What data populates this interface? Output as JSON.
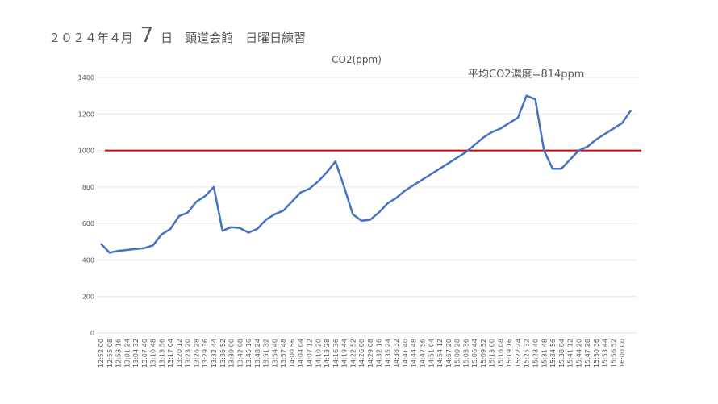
{
  "chart_data": {
    "type": "line",
    "title": [
      "２０２４年４月",
      "7",
      "日　顕道会館　日曜日練習"
    ],
    "annotation": "平均CO2濃度=814ppm",
    "categories": [
      "12:52:00",
      "12:55:08",
      "12:58:16",
      "13:01:24",
      "13:04:32",
      "13:07:40",
      "13:10:48",
      "13:13:56",
      "13:17:04",
      "13:20:12",
      "13:23:20",
      "13:26:28",
      "13:29:36",
      "13:32:44",
      "13:35:52",
      "13:39:00",
      "13:42:08",
      "13:45:16",
      "13:48:24",
      "13:51:32",
      "13:54:40",
      "13:57:48",
      "14:00:56",
      "14:04:04",
      "14:07:12",
      "14:10:20",
      "14:13:28",
      "14:16:36",
      "14:19:44",
      "14:22:52",
      "14:26:00",
      "14:29:08",
      "14:32:16",
      "14:35:24",
      "14:38:32",
      "14:41:40",
      "14:44:48",
      "14:47:56",
      "14:51:04",
      "14:54:12",
      "14:57:20",
      "15:00:28",
      "15:03:36",
      "15:06:44",
      "15:09:52",
      "15:13:00",
      "15:16:08",
      "15:19:16",
      "15:22:24",
      "15:25:32",
      "15:28:40",
      "15:31:48",
      "15:34:56",
      "15:38:04",
      "15:41:12",
      "15:44:20",
      "15:47:28",
      "15:50:36",
      "15:53:44",
      "15:56:52",
      "16:00:00",
      null
    ],
    "series": [
      {
        "name": "CO2(ppm)",
        "color": "#4472c4",
        "values": [
          490,
          440,
          450,
          455,
          460,
          465,
          480,
          540,
          570,
          640,
          660,
          720,
          750,
          800,
          560,
          580,
          575,
          550,
          570,
          620,
          650,
          670,
          720,
          770,
          790,
          830,
          880,
          940,
          800,
          650,
          615,
          620,
          660,
          710,
          740,
          780,
          810,
          840,
          870,
          900,
          930,
          960,
          990,
          1030,
          1070,
          1100,
          1120,
          1150,
          1180,
          1300,
          1280,
          1000,
          900,
          900,
          950,
          1000,
          1020,
          1060,
          1090,
          1120,
          1150,
          1220
        ]
      }
    ],
    "threshold": {
      "value": 1000,
      "color": "#e00000"
    },
    "ylim": [
      0,
      1400
    ],
    "yticks": [
      0,
      200,
      400,
      600,
      800,
      1000,
      1200,
      1400
    ],
    "grid": true
  }
}
